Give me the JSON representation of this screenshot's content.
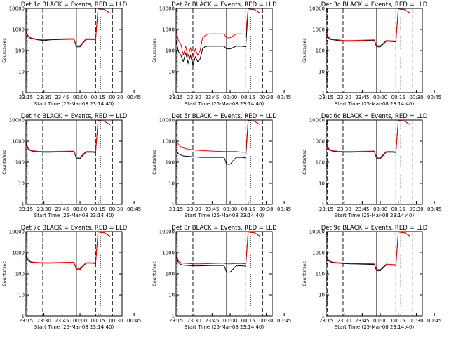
{
  "figure": {
    "background": "#ffffff",
    "colors": {
      "events": "#000000",
      "lld": "#ff0000",
      "axes": "#000000"
    }
  },
  "chart_data": [
    {
      "type": "line",
      "title": "Det 1c BLACK = Events, RED = LLD",
      "xlabel": "Start Time (25-Mar-08 23:14:40)",
      "ylabel": "Counts/sec",
      "xtick_labels": [
        "23:15",
        "23:30",
        "23:45",
        "00:00",
        "00:15",
        "00:30",
        "00:45"
      ],
      "ytick_labels": [
        "1",
        "10",
        "100",
        "1000",
        "10000"
      ],
      "yscale": "log",
      "ylim": [
        1,
        10000
      ],
      "series": [
        {
          "name": "Events",
          "color": "#000000",
          "x": [
            0,
            2,
            4,
            6,
            10,
            15,
            20,
            30,
            40,
            42,
            45,
            50,
            55,
            58,
            60,
            62,
            65,
            70
          ],
          "y": [
            800,
            450,
            380,
            360,
            320,
            300,
            320,
            340,
            350,
            150,
            150,
            340,
            340,
            330,
            20000,
            9000,
            9000,
            6000
          ]
        },
        {
          "name": "LLD",
          "color": "#ff0000",
          "x": [
            0,
            2,
            4,
            6,
            10,
            15,
            20,
            30,
            40,
            42,
            45,
            50,
            55,
            58,
            60,
            62,
            65,
            70
          ],
          "y": [
            900,
            480,
            400,
            380,
            340,
            320,
            340,
            360,
            370,
            170,
            170,
            360,
            360,
            350,
            20000,
            9000,
            9000,
            6000
          ]
        }
      ]
    },
    {
      "type": "line",
      "title": "Det 2r BLACK = Events, RED = LLD",
      "xlabel": "Start Time (25-Mar-08 23:14:40)",
      "ylabel": "Counts/sec",
      "xtick_labels": [
        "23:15",
        "23:30",
        "23:45",
        "00:00",
        "00:15",
        "00:30",
        "00:45"
      ],
      "ytick_labels": [
        "1",
        "10",
        "100",
        "1000",
        "10000"
      ],
      "yscale": "log",
      "ylim": [
        1,
        10000
      ],
      "series": [
        {
          "name": "Events",
          "color": "#000000",
          "x": [
            0,
            2,
            4,
            6,
            8,
            10,
            12,
            14,
            16,
            18,
            20,
            22,
            24,
            26,
            28,
            30,
            32,
            34,
            36,
            38,
            40,
            42,
            45,
            50,
            55,
            58,
            60,
            62,
            65,
            70
          ],
          "y": [
            300,
            90,
            60,
            30,
            80,
            25,
            60,
            20,
            50,
            30,
            40,
            120,
            150,
            160,
            160,
            160,
            160,
            160,
            160,
            160,
            160,
            120,
            120,
            160,
            160,
            150,
            12000,
            9000,
            9000,
            6000
          ]
        },
        {
          "name": "LLD",
          "color": "#ff0000",
          "x": [
            0,
            2,
            4,
            6,
            8,
            10,
            12,
            14,
            16,
            18,
            20,
            22,
            24,
            26,
            28,
            30,
            32,
            34,
            36,
            38,
            40,
            42,
            45,
            50,
            55,
            58,
            60,
            62,
            65,
            70
          ],
          "y": [
            900,
            300,
            200,
            60,
            160,
            50,
            140,
            50,
            120,
            60,
            100,
            400,
            500,
            600,
            620,
            620,
            620,
            620,
            620,
            620,
            620,
            400,
            400,
            620,
            620,
            600,
            12000,
            9000,
            9000,
            6000
          ]
        }
      ]
    },
    {
      "type": "line",
      "title": "Det 3c BLACK = Events, RED = LLD",
      "xlabel": "Start Time (25-Mar-08 23:14:40)",
      "ylabel": "Counts/sec",
      "xtick_labels": [
        "23:15",
        "23:30",
        "23:45",
        "00:00",
        "00:15",
        "00:30",
        "00:45"
      ],
      "ytick_labels": [
        "1",
        "10",
        "100",
        "1000",
        "10000"
      ],
      "yscale": "log",
      "ylim": [
        1,
        10000
      ],
      "series": [
        {
          "name": "Events",
          "color": "#000000",
          "x": [
            0,
            2,
            4,
            6,
            10,
            15,
            20,
            30,
            40,
            42,
            45,
            50,
            55,
            58,
            60,
            62,
            65,
            70
          ],
          "y": [
            700,
            400,
            330,
            320,
            300,
            280,
            280,
            290,
            300,
            150,
            150,
            280,
            270,
            260,
            20000,
            9000,
            9000,
            6000
          ]
        },
        {
          "name": "LLD",
          "color": "#ff0000",
          "x": [
            0,
            2,
            4,
            6,
            10,
            15,
            20,
            30,
            40,
            42,
            45,
            50,
            55,
            58,
            60,
            62,
            65,
            70
          ],
          "y": [
            800,
            430,
            350,
            340,
            320,
            300,
            300,
            310,
            320,
            170,
            170,
            300,
            290,
            280,
            20000,
            9000,
            9000,
            6000
          ]
        }
      ]
    },
    {
      "type": "line",
      "title": "Det 4c BLACK = Events, RED = LLD",
      "xlabel": "Start Time (25-Mar-08 23:14:40)",
      "ylabel": "Counts/sec",
      "xtick_labels": [
        "23:15",
        "23:30",
        "23:45",
        "00:00",
        "00:15",
        "00:30",
        "00:45"
      ],
      "ytick_labels": [
        "1",
        "10",
        "100",
        "1000",
        "10000"
      ],
      "yscale": "log",
      "ylim": [
        1,
        10000
      ],
      "series": [
        {
          "name": "Events",
          "color": "#000000",
          "x": [
            0,
            2,
            4,
            6,
            10,
            15,
            20,
            30,
            40,
            42,
            45,
            50,
            55,
            58,
            60,
            62,
            65,
            70
          ],
          "y": [
            800,
            420,
            350,
            330,
            310,
            300,
            300,
            310,
            320,
            150,
            150,
            300,
            300,
            290,
            20000,
            9000,
            9000,
            6000
          ]
        },
        {
          "name": "LLD",
          "color": "#ff0000",
          "x": [
            0,
            2,
            4,
            6,
            10,
            15,
            20,
            30,
            40,
            42,
            45,
            50,
            55,
            58,
            60,
            62,
            65,
            70
          ],
          "y": [
            900,
            450,
            370,
            350,
            330,
            320,
            320,
            330,
            340,
            170,
            170,
            320,
            320,
            310,
            20000,
            9000,
            9000,
            6000
          ]
        }
      ]
    },
    {
      "type": "line",
      "title": "Det 5r BLACK = Events, RED = LLD",
      "xlabel": "Start Time (25-Mar-08 23:14:40)",
      "ylabel": "Counts/sec",
      "xtick_labels": [
        "23:15",
        "23:30",
        "23:45",
        "00:00",
        "00:15",
        "00:30",
        "00:45"
      ],
      "ytick_labels": [
        "1",
        "10",
        "100",
        "1000",
        "10000"
      ],
      "yscale": "log",
      "ylim": [
        1,
        10000
      ],
      "series": [
        {
          "name": "Events",
          "color": "#000000",
          "x": [
            0,
            2,
            4,
            6,
            10,
            15,
            20,
            30,
            40,
            42,
            45,
            50,
            55,
            58,
            60,
            62,
            65,
            70
          ],
          "y": [
            400,
            250,
            220,
            200,
            190,
            180,
            170,
            170,
            170,
            80,
            80,
            170,
            170,
            160,
            12000,
            9000,
            9000,
            6000
          ]
        },
        {
          "name": "LLD",
          "color": "#ff0000",
          "x": [
            0,
            2,
            4,
            6,
            10,
            15,
            20,
            30,
            40,
            42,
            45,
            50,
            55,
            58,
            60,
            62,
            65,
            70
          ],
          "y": [
            1000,
            700,
            550,
            480,
            420,
            380,
            360,
            340,
            320,
            320,
            320,
            320,
            300,
            300,
            12000,
            9000,
            9000,
            6000
          ]
        }
      ]
    },
    {
      "type": "line",
      "title": "Det 6c BLACK = Events, RED = LLD",
      "xlabel": "Start Time (25-Mar-08 23:14:40)",
      "ylabel": "Counts/sec",
      "xtick_labels": [
        "23:15",
        "23:30",
        "23:45",
        "00:00",
        "00:15",
        "00:30",
        "00:45"
      ],
      "ytick_labels": [
        "1",
        "10",
        "100",
        "1000",
        "10000"
      ],
      "yscale": "log",
      "ylim": [
        1,
        10000
      ],
      "series": [
        {
          "name": "Events",
          "color": "#000000",
          "x": [
            0,
            2,
            4,
            6,
            10,
            15,
            20,
            30,
            40,
            42,
            45,
            50,
            55,
            58,
            60,
            62,
            65,
            70
          ],
          "y": [
            800,
            420,
            350,
            330,
            310,
            300,
            300,
            310,
            320,
            150,
            150,
            300,
            300,
            290,
            20000,
            9000,
            9000,
            6000
          ]
        },
        {
          "name": "LLD",
          "color": "#ff0000",
          "x": [
            0,
            2,
            4,
            6,
            10,
            15,
            20,
            30,
            40,
            42,
            45,
            50,
            55,
            58,
            60,
            62,
            65,
            70
          ],
          "y": [
            900,
            450,
            370,
            350,
            330,
            320,
            320,
            330,
            340,
            170,
            170,
            320,
            320,
            310,
            20000,
            9000,
            9000,
            6000
          ]
        }
      ]
    },
    {
      "type": "line",
      "title": "Det 7c BLACK = Events, RED = LLD",
      "xlabel": "Start Time (25-Mar-08 23:14:40)",
      "ylabel": "Counts/sec",
      "xtick_labels": [
        "23:15",
        "23:30",
        "23:45",
        "00:00",
        "00:15",
        "00:30",
        "00:45"
      ],
      "ytick_labels": [
        "1",
        "10",
        "100",
        "1000",
        "10000"
      ],
      "yscale": "log",
      "ylim": [
        1,
        10000
      ],
      "series": [
        {
          "name": "Events",
          "color": "#000000",
          "x": [
            0,
            2,
            4,
            6,
            10,
            15,
            20,
            30,
            40,
            42,
            45,
            50,
            55,
            58,
            60,
            62,
            65,
            70
          ],
          "y": [
            800,
            420,
            360,
            340,
            330,
            320,
            320,
            330,
            340,
            160,
            160,
            320,
            320,
            310,
            20000,
            9000,
            9000,
            6000
          ]
        },
        {
          "name": "LLD",
          "color": "#ff0000",
          "x": [
            0,
            2,
            4,
            6,
            10,
            15,
            20,
            30,
            40,
            42,
            45,
            50,
            55,
            58,
            60,
            62,
            65,
            70
          ],
          "y": [
            900,
            450,
            380,
            360,
            350,
            340,
            340,
            350,
            360,
            180,
            180,
            340,
            340,
            330,
            20000,
            9000,
            9000,
            6000
          ]
        }
      ]
    },
    {
      "type": "line",
      "title": "Det 8r BLACK = Events, RED = LLD",
      "xlabel": "Start Time (25-Mar-08 23:14:40)",
      "ylabel": "Counts/sec",
      "xtick_labels": [
        "23:15",
        "23:30",
        "23:45",
        "00:00",
        "00:15",
        "00:30",
        "00:45"
      ],
      "ytick_labels": [
        "1",
        "10",
        "100",
        "1000",
        "10000"
      ],
      "yscale": "log",
      "ylim": [
        1,
        10000
      ],
      "series": [
        {
          "name": "Events",
          "color": "#000000",
          "x": [
            0,
            2,
            4,
            6,
            10,
            15,
            20,
            30,
            40,
            42,
            45,
            50,
            55,
            58,
            60,
            62,
            65,
            70
          ],
          "y": [
            700,
            330,
            280,
            260,
            250,
            240,
            240,
            250,
            250,
            120,
            120,
            240,
            240,
            230,
            12000,
            9000,
            9000,
            6000
          ]
        },
        {
          "name": "LLD",
          "color": "#ff0000",
          "x": [
            0,
            2,
            4,
            6,
            10,
            15,
            20,
            30,
            40,
            42,
            45,
            50,
            55,
            58,
            60,
            62,
            65,
            70
          ],
          "y": [
            900,
            400,
            340,
            320,
            310,
            300,
            300,
            310,
            320,
            300,
            300,
            310,
            310,
            300,
            12000,
            9000,
            9000,
            6000
          ]
        }
      ]
    },
    {
      "type": "line",
      "title": "Det 9c BLACK = Events, RED = LLD",
      "xlabel": "Start Time (25-Mar-08 23:14:40)",
      "ylabel": "Counts/sec",
      "xtick_labels": [
        "23:15",
        "23:30",
        "23:45",
        "00:00",
        "00:15",
        "00:30",
        "00:45"
      ],
      "ytick_labels": [
        "1",
        "10",
        "100",
        "1000",
        "10000"
      ],
      "yscale": "log",
      "ylim": [
        1,
        10000
      ],
      "series": [
        {
          "name": "Events",
          "color": "#000000",
          "x": [
            0,
            2,
            4,
            6,
            10,
            15,
            20,
            30,
            40,
            42,
            45,
            50,
            55,
            58,
            60,
            62,
            65,
            70
          ],
          "y": [
            700,
            420,
            360,
            340,
            320,
            310,
            300,
            290,
            280,
            140,
            140,
            270,
            260,
            250,
            20000,
            9000,
            9000,
            6000
          ]
        },
        {
          "name": "LLD",
          "color": "#ff0000",
          "x": [
            0,
            2,
            4,
            6,
            10,
            15,
            20,
            30,
            40,
            42,
            45,
            50,
            55,
            58,
            60,
            62,
            65,
            70
          ],
          "y": [
            800,
            450,
            380,
            360,
            340,
            330,
            320,
            310,
            300,
            160,
            160,
            290,
            280,
            270,
            20000,
            9000,
            9000,
            6000
          ]
        }
      ]
    }
  ]
}
